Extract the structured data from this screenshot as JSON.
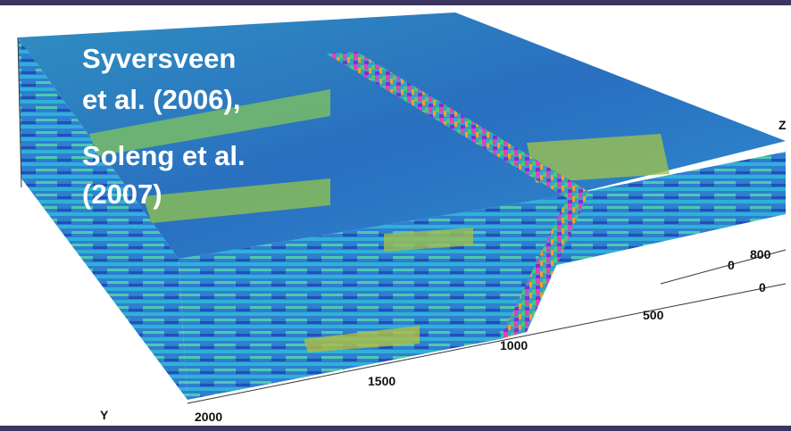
{
  "overlay": {
    "lines": [
      "Syversveen",
      "et al. (2006),",
      "Soleng et al.",
      "(2007)"
    ]
  },
  "axis_labels": {
    "z_axis": "Z",
    "y_axis": "Y",
    "y_ticks": [
      "2000",
      "1500",
      "1000",
      "500",
      "0"
    ],
    "x_ticks": [
      "0",
      "800"
    ]
  }
}
